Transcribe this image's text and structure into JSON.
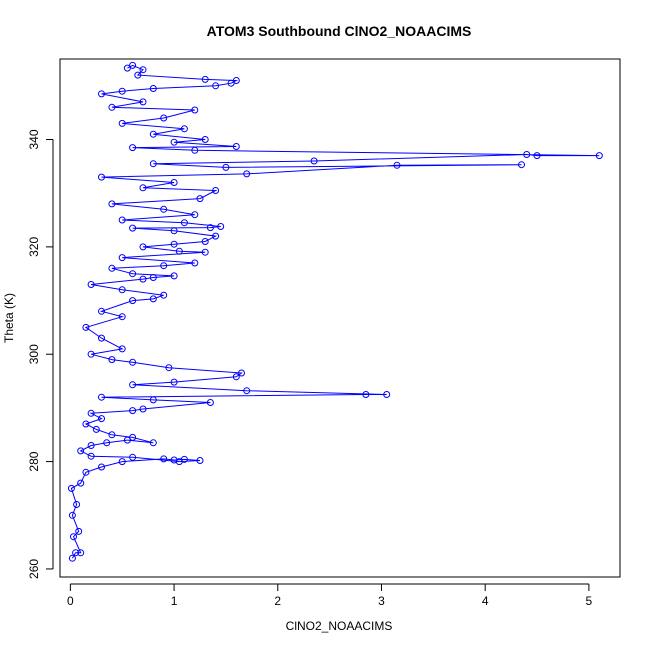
{
  "chart_data": {
    "type": "scatter",
    "title": "ATOM3 Southbound ClNO2_NOAACIMS",
    "xlabel": "ClNO2_NOAACIMS",
    "ylabel": "Theta (K)",
    "xlim": [
      -0.1,
      5.3
    ],
    "ylim": [
      258.5,
      355
    ],
    "xticks": [
      0,
      1,
      2,
      3,
      4,
      5
    ],
    "yticks": [
      260,
      280,
      300,
      320,
      340
    ],
    "grid": false,
    "marker": "open-circle",
    "connected": true,
    "colors": {
      "series": "#0000ff",
      "axis": "#000000"
    },
    "series": [
      {
        "points": [
          [
            0.02,
            262
          ],
          [
            0.05,
            263
          ],
          [
            0.1,
            263
          ],
          [
            0.03,
            266
          ],
          [
            0.08,
            267
          ],
          [
            0.02,
            270
          ],
          [
            0.06,
            272
          ],
          [
            0.01,
            275
          ],
          [
            0.1,
            276
          ],
          [
            0.15,
            278
          ],
          [
            0.3,
            279
          ],
          [
            0.5,
            280
          ],
          [
            0.9,
            280.5
          ],
          [
            1.0,
            280.3
          ],
          [
            1.1,
            280.4
          ],
          [
            1.25,
            280.2
          ],
          [
            1.05,
            280.0
          ],
          [
            0.6,
            280.8
          ],
          [
            0.2,
            281
          ],
          [
            0.1,
            282
          ],
          [
            0.2,
            283
          ],
          [
            0.35,
            283.5
          ],
          [
            0.55,
            284
          ],
          [
            0.8,
            283.5
          ],
          [
            0.6,
            284.5
          ],
          [
            0.4,
            285
          ],
          [
            0.25,
            286
          ],
          [
            0.15,
            287
          ],
          [
            0.3,
            288
          ],
          [
            0.2,
            289
          ],
          [
            0.6,
            289.5
          ],
          [
            0.7,
            289.8
          ],
          [
            1.35,
            291
          ],
          [
            0.8,
            291.5
          ],
          [
            0.3,
            292
          ],
          [
            2.85,
            292.5
          ],
          [
            3.05,
            292.5
          ],
          [
            1.7,
            293.2
          ],
          [
            0.6,
            294.3
          ],
          [
            1.0,
            294.8
          ],
          [
            1.6,
            295.8
          ],
          [
            1.65,
            296.5
          ],
          [
            0.95,
            297.5
          ],
          [
            0.6,
            298.5
          ],
          [
            0.4,
            299
          ],
          [
            0.2,
            300
          ],
          [
            0.5,
            301
          ],
          [
            0.3,
            303
          ],
          [
            0.15,
            305
          ],
          [
            0.5,
            307
          ],
          [
            0.3,
            308
          ],
          [
            0.6,
            310
          ],
          [
            0.8,
            310.3
          ],
          [
            0.9,
            311
          ],
          [
            0.5,
            312
          ],
          [
            0.2,
            313
          ],
          [
            0.7,
            314
          ],
          [
            0.8,
            314.3
          ],
          [
            1.0,
            314.6
          ],
          [
            0.6,
            315
          ],
          [
            0.4,
            316
          ],
          [
            0.9,
            316.5
          ],
          [
            1.2,
            317
          ],
          [
            0.5,
            318
          ],
          [
            1.3,
            319
          ],
          [
            1.05,
            319.2
          ],
          [
            0.7,
            320
          ],
          [
            1.0,
            320.5
          ],
          [
            1.3,
            321
          ],
          [
            1.4,
            322
          ],
          [
            1.0,
            323
          ],
          [
            0.6,
            323.5
          ],
          [
            1.35,
            323.6
          ],
          [
            1.45,
            323.8
          ],
          [
            1.1,
            324.5
          ],
          [
            0.5,
            325
          ],
          [
            1.2,
            326
          ],
          [
            0.9,
            327
          ],
          [
            0.4,
            328
          ],
          [
            1.25,
            329
          ],
          [
            1.4,
            330.5
          ],
          [
            0.7,
            331
          ],
          [
            1.0,
            332
          ],
          [
            0.3,
            333
          ],
          [
            1.7,
            333.6
          ],
          [
            3.15,
            335.2
          ],
          [
            4.35,
            335.3
          ],
          [
            1.5,
            334.8
          ],
          [
            0.8,
            335.5
          ],
          [
            2.35,
            336
          ],
          [
            4.4,
            337.2
          ],
          [
            4.5,
            337
          ],
          [
            5.1,
            337
          ],
          [
            1.2,
            338
          ],
          [
            0.6,
            338.5
          ],
          [
            1.6,
            338.7
          ],
          [
            1.0,
            339.5
          ],
          [
            1.3,
            340
          ],
          [
            0.8,
            341
          ],
          [
            1.1,
            342
          ],
          [
            0.5,
            343
          ],
          [
            0.9,
            344
          ],
          [
            1.2,
            345.5
          ],
          [
            0.4,
            346
          ],
          [
            0.7,
            347
          ],
          [
            0.3,
            348.5
          ],
          [
            0.5,
            349
          ],
          [
            0.8,
            349.5
          ],
          [
            1.4,
            350
          ],
          [
            1.55,
            350.5
          ],
          [
            1.6,
            351
          ],
          [
            1.3,
            351.2
          ],
          [
            0.65,
            352
          ],
          [
            0.7,
            353
          ],
          [
            0.6,
            353.8
          ],
          [
            0.55,
            353.3
          ]
        ]
      }
    ]
  }
}
